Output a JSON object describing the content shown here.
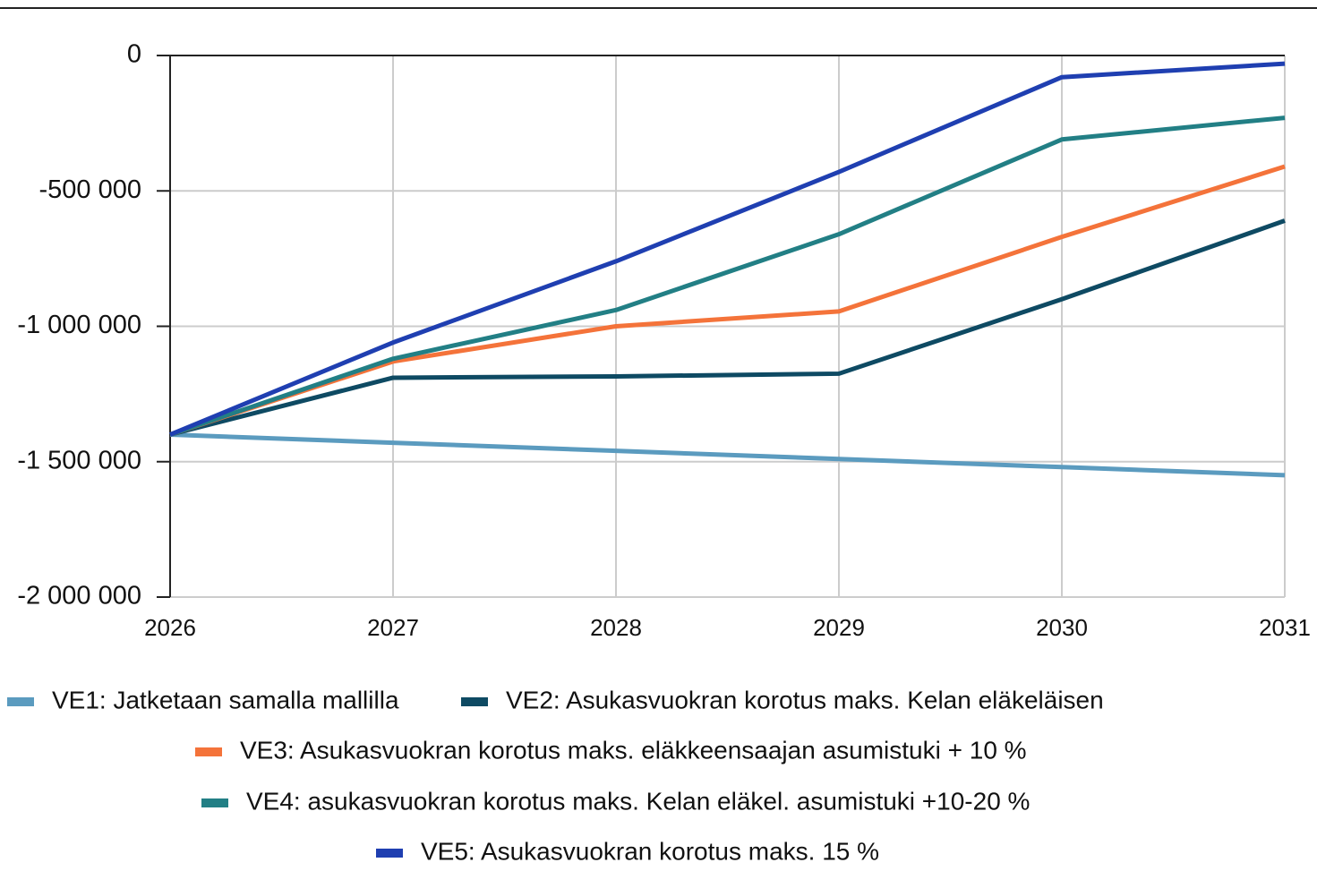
{
  "chart_data": {
    "type": "line",
    "x": [
      2026,
      2027,
      2028,
      2029,
      2030,
      2031
    ],
    "xlim": [
      2026,
      2031
    ],
    "xticks": [
      2026,
      2027,
      2028,
      2029,
      2030,
      2031
    ],
    "ylim": [
      -2000000,
      0
    ],
    "yticks": [
      {
        "value": -2000000,
        "label": "-2 000 000"
      },
      {
        "value": -1500000,
        "label": "-1 500 000"
      },
      {
        "value": -1000000,
        "label": "-1 000 000"
      },
      {
        "value": -500000,
        "label": "-500 000"
      },
      0
    ],
    "grid": true,
    "series": [
      {
        "name": "VE1: Jatketaan samalla mallilla",
        "color": "#5b9bbf",
        "values": [
          -1400000,
          -1430000,
          -1460000,
          -1490000,
          -1520000,
          -1550000
        ]
      },
      {
        "name": "VE2: Asukasvuokran korotus maks. Kelan eläkeläisen",
        "color": "#0e4a63",
        "values": [
          -1400000,
          -1190000,
          -1185000,
          -1175000,
          -900000,
          -610000
        ]
      },
      {
        "name": "VE3: Asukasvuokran  korotus maks. eläkkeensaajan asumistuki + 10 %",
        "color": "#f4733a",
        "values": [
          -1400000,
          -1130000,
          -1000000,
          -945000,
          -670000,
          -410000
        ]
      },
      {
        "name": "VE4: asukasvuokran korotus maks. Kelan eläkel. asumistuki +10-20 %",
        "color": "#227f85",
        "values": [
          -1400000,
          -1120000,
          -940000,
          -660000,
          -310000,
          -230000
        ]
      },
      {
        "name": "VE5: Asukasvuokran korotus maks. 15 %",
        "color": "#1f3fb1",
        "values": [
          -1400000,
          -1060000,
          -760000,
          -430000,
          -80000,
          -30000
        ]
      }
    ]
  }
}
